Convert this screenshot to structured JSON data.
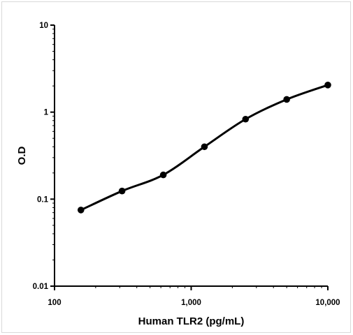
{
  "chart_data": {
    "type": "line",
    "title": "",
    "xlabel": "Human TLR2 (pg/mL)",
    "ylabel": "O.D",
    "x_scale": "log",
    "y_scale": "log",
    "xlim": [
      100,
      10000
    ],
    "ylim": [
      0.01,
      10
    ],
    "x_ticks": [
      {
        "value": 100,
        "label": "100"
      },
      {
        "value": 1000,
        "label": "1,000"
      },
      {
        "value": 10000,
        "label": "10,000"
      }
    ],
    "y_ticks": [
      {
        "value": 10,
        "label": "10"
      },
      {
        "value": 1,
        "label": "1"
      },
      {
        "value": 0.1,
        "label": "0.1"
      },
      {
        "value": 0.01,
        "label": "0.01"
      }
    ],
    "grid": false,
    "legend": "none",
    "series": [
      {
        "color": "#000000",
        "marker": "circle",
        "x": [
          156,
          312,
          625,
          1250,
          2500,
          5000,
          10000
        ],
        "y": [
          0.075,
          0.124,
          0.19,
          0.4,
          0.83,
          1.4,
          2.05
        ]
      }
    ]
  }
}
